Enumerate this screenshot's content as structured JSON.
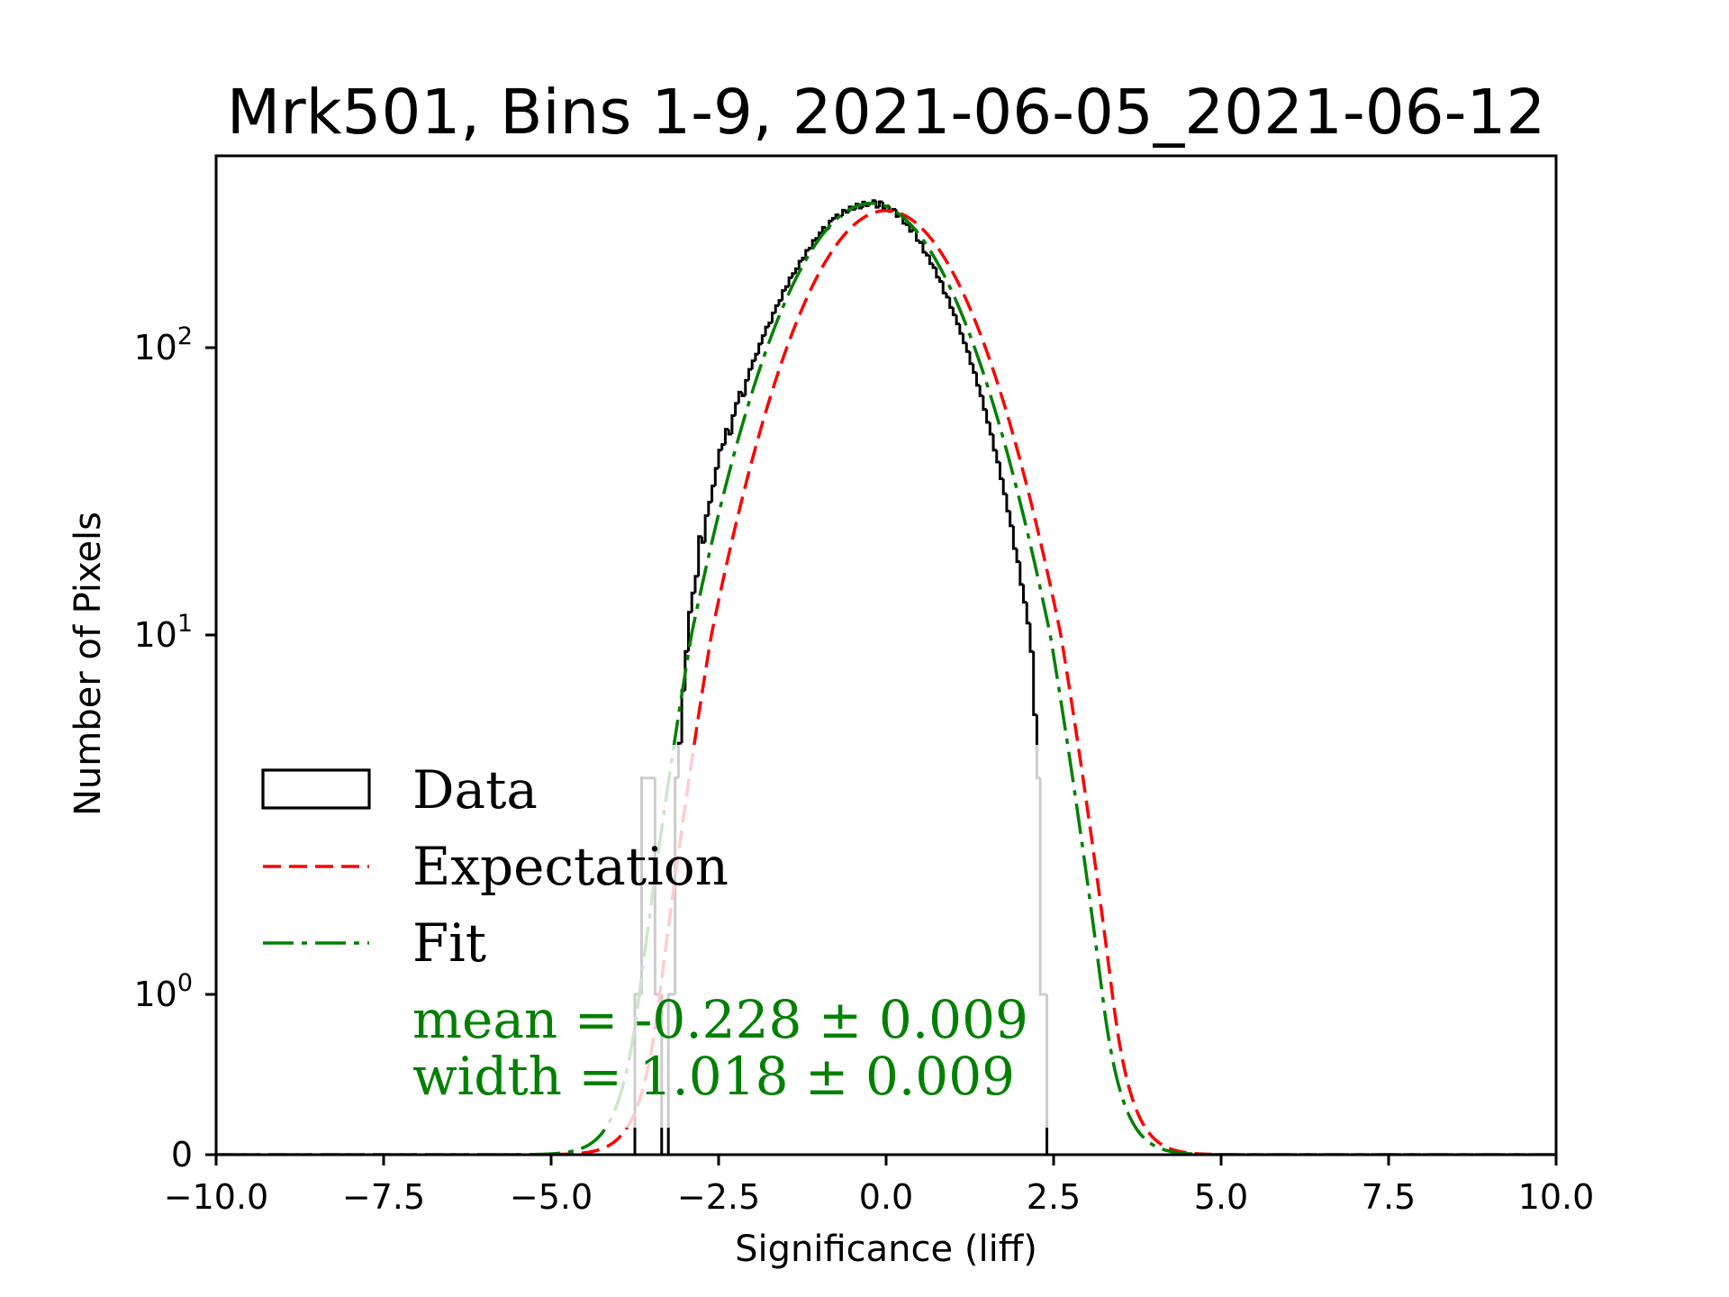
{
  "chart_data": {
    "type": "histogram",
    "title": "Mrk501, Bins 1-9, 2021-06-05_2021-06-12",
    "xlabel": "Significance (liff)",
    "ylabel": "Number of Pixels",
    "xlim": [
      -10,
      10
    ],
    "ylim": [
      0,
      466
    ],
    "yscale": "symlog",
    "grid": false,
    "xticks": {
      "values": [
        -10,
        -7.5,
        -5,
        -2.5,
        0,
        2.5,
        5,
        7.5,
        10
      ],
      "labels": [
        "−10.0",
        "−7.5",
        "−5.0",
        "−2.5",
        "0.0",
        "2.5",
        "5.0",
        "7.5",
        "10.0"
      ]
    },
    "yticks": {
      "values": [
        0,
        1,
        10,
        100
      ],
      "labels": [
        {
          "base": "0",
          "exp": ""
        },
        {
          "base": "10",
          "exp": "0"
        },
        {
          "base": "10",
          "exp": "1"
        },
        {
          "base": "10",
          "exp": "2"
        }
      ]
    },
    "legend": {
      "placement": "lower-left",
      "entries": [
        {
          "label": "Data",
          "color": "#000000"
        },
        {
          "label": "Expectation",
          "color": "#ff0000"
        },
        {
          "label": "Fit",
          "color": "#008000"
        }
      ]
    },
    "histogram": {
      "legend_index": 0,
      "color": "#000000",
      "bin_start": -3.75,
      "bin_width": 0.05,
      "counts": [
        1,
        1,
        4,
        4,
        4,
        4,
        1,
        1,
        0,
        0,
        1,
        1,
        4,
        5,
        7,
        9,
        12,
        14,
        16,
        22,
        21,
        26,
        29,
        33,
        38,
        44,
        46,
        52,
        50,
        58,
        64,
        70,
        68,
        77,
        84,
        90,
        95,
        103,
        110,
        118,
        122,
        132,
        140,
        146,
        158,
        163,
        175,
        181,
        188,
        200,
        205,
        218,
        222,
        236,
        240,
        251,
        262,
        259,
        276,
        282,
        290,
        287,
        301,
        296,
        309,
        303,
        316,
        306,
        321,
        312,
        318,
        325,
        308,
        322,
        305,
        311,
        298,
        303,
        286,
        290,
        271,
        268,
        254,
        258,
        236,
        232,
        215,
        210,
        196,
        190,
        176,
        170,
        155,
        150,
        138,
        130,
        121,
        112,
        104,
        97,
        88,
        82,
        74,
        68,
        61,
        55,
        50,
        44,
        40,
        35,
        31,
        27,
        24,
        20,
        18,
        15,
        13,
        11,
        9,
        6,
        4,
        1,
        1,
        0
      ]
    },
    "series": [
      {
        "legend_index": 1,
        "mean": 0,
        "width": 1,
        "amplitude": 300,
        "color": "#ff0000"
      },
      {
        "legend_index": 2,
        "mean": -0.228,
        "width": 1.018,
        "amplitude": 318,
        "color": "#008000"
      }
    ],
    "fit_result": {
      "mean": -0.228,
      "mean_err": 0.009,
      "width": 1.018,
      "width_err": 0.009
    },
    "annotations": {
      "mean_text": "mean = -0.228 ± 0.009",
      "width_text": "width = 1.018 ± 0.009",
      "color": "#008000"
    }
  }
}
